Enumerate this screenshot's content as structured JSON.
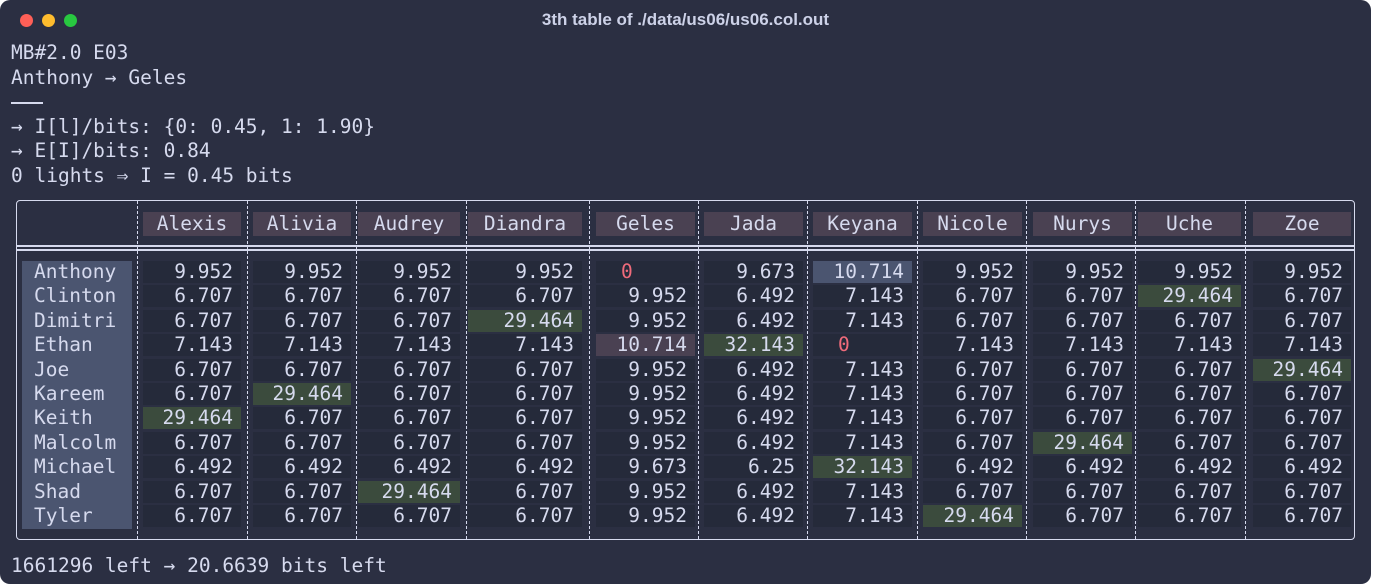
{
  "window": {
    "title": "3th table of ./data/us06/us06.col.out"
  },
  "header_lines": [
    "MB#2.0 E03",
    "Anthony → Geles",
    "",
    "→ I[l]/bits: {0: 0.45, 1: 1.90}",
    "→ E[I]/bits: 0.84",
    "0 lights ⇒ I = 0.45 bits"
  ],
  "table": {
    "columns": [
      "Alexis",
      "Alivia",
      "Audrey",
      "Diandra",
      "Geles",
      "Jada",
      "Keyana",
      "Nicole",
      "Nurys",
      "Uche",
      "Zoe"
    ],
    "rows": [
      {
        "name": "Anthony",
        "values": [
          "9.952",
          "9.952",
          "9.952",
          "9.952",
          "0",
          "9.673",
          "10.714",
          "9.952",
          "9.952",
          "9.952",
          "9.952"
        ]
      },
      {
        "name": "Clinton",
        "values": [
          "6.707",
          "6.707",
          "6.707",
          "6.707",
          "9.952",
          "6.492",
          "7.143",
          "6.707",
          "6.707",
          "29.464",
          "6.707"
        ]
      },
      {
        "name": "Dimitri",
        "values": [
          "6.707",
          "6.707",
          "6.707",
          "29.464",
          "9.952",
          "6.492",
          "7.143",
          "6.707",
          "6.707",
          "6.707",
          "6.707"
        ]
      },
      {
        "name": "Ethan",
        "values": [
          "7.143",
          "7.143",
          "7.143",
          "7.143",
          "10.714",
          "32.143",
          "0",
          "7.143",
          "7.143",
          "7.143",
          "7.143"
        ]
      },
      {
        "name": "Joe",
        "values": [
          "6.707",
          "6.707",
          "6.707",
          "6.707",
          "9.952",
          "6.492",
          "7.143",
          "6.707",
          "6.707",
          "6.707",
          "29.464"
        ]
      },
      {
        "name": "Kareem",
        "values": [
          "6.707",
          "29.464",
          "6.707",
          "6.707",
          "9.952",
          "6.492",
          "7.143",
          "6.707",
          "6.707",
          "6.707",
          "6.707"
        ]
      },
      {
        "name": "Keith",
        "values": [
          "29.464",
          "6.707",
          "6.707",
          "6.707",
          "9.952",
          "6.492",
          "7.143",
          "6.707",
          "6.707",
          "6.707",
          "6.707"
        ]
      },
      {
        "name": "Malcolm",
        "values": [
          "6.707",
          "6.707",
          "6.707",
          "6.707",
          "9.952",
          "6.492",
          "7.143",
          "6.707",
          "29.464",
          "6.707",
          "6.707"
        ]
      },
      {
        "name": "Michael",
        "values": [
          "6.492",
          "6.492",
          "6.492",
          "6.492",
          "9.673",
          "6.25",
          "32.143",
          "6.492",
          "6.492",
          "6.492",
          "6.492"
        ]
      },
      {
        "name": "Shad",
        "values": [
          "6.707",
          "6.707",
          "29.464",
          "6.707",
          "9.952",
          "6.492",
          "7.143",
          "6.707",
          "6.707",
          "6.707",
          "6.707"
        ]
      },
      {
        "name": "Tyler",
        "values": [
          "6.707",
          "6.707",
          "6.707",
          "6.707",
          "9.952",
          "6.492",
          "7.143",
          "29.464",
          "6.707",
          "6.707",
          "6.707"
        ]
      }
    ],
    "highlights": {
      "green": [
        [
          1,
          9
        ],
        [
          2,
          3
        ],
        [
          3,
          5
        ],
        [
          4,
          10
        ],
        [
          5,
          1
        ],
        [
          6,
          0
        ],
        [
          7,
          8
        ],
        [
          8,
          6
        ],
        [
          9,
          2
        ],
        [
          10,
          7
        ]
      ],
      "pink": [
        [
          3,
          4
        ]
      ],
      "blue": [
        [
          0,
          6
        ]
      ],
      "zero_red": [
        [
          0,
          4
        ],
        [
          3,
          6
        ]
      ]
    }
  },
  "footer": "1661296 left → 20.6639 bits left"
}
